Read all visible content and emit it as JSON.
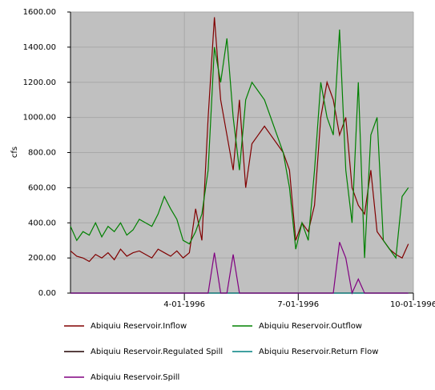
{
  "chart_data": {
    "type": "line",
    "y_label": "cfs",
    "x": [
      "1996-01-01",
      "1996-01-06",
      "1996-01-11",
      "1996-01-16",
      "1996-01-21",
      "1996-01-26",
      "1996-01-31",
      "1996-02-05",
      "1996-02-10",
      "1996-02-15",
      "1996-02-20",
      "1996-02-25",
      "1996-03-01",
      "1996-03-06",
      "1996-03-11",
      "1996-03-16",
      "1996-03-21",
      "1996-03-26",
      "1996-03-31",
      "1996-04-05",
      "1996-04-10",
      "1996-04-15",
      "1996-04-20",
      "1996-04-25",
      "1996-04-30",
      "1996-05-05",
      "1996-05-10",
      "1996-05-15",
      "1996-05-20",
      "1996-05-25",
      "1996-05-30",
      "1996-06-04",
      "1996-06-09",
      "1996-06-14",
      "1996-06-19",
      "1996-06-24",
      "1996-06-29",
      "1996-07-04",
      "1996-07-09",
      "1996-07-14",
      "1996-07-19",
      "1996-07-24",
      "1996-07-29",
      "1996-08-03",
      "1996-08-08",
      "1996-08-13",
      "1996-08-18",
      "1996-08-23",
      "1996-08-28",
      "1996-09-02",
      "1996-09-07",
      "1996-09-12",
      "1996-09-17",
      "1996-09-22",
      "1996-09-27"
    ],
    "xlim": [
      "1996-01-01",
      "1996-10-01"
    ],
    "xticks": [
      {
        "value": "1996-04-01",
        "label": "4-01-1996"
      },
      {
        "value": "1996-07-01",
        "label": "7-01-1996"
      },
      {
        "value": "1996-10-01",
        "label": "10-01-1996"
      }
    ],
    "ylim": [
      0,
      1600
    ],
    "yticks": [
      {
        "value": 0,
        "label": "0.00"
      },
      {
        "value": 200,
        "label": "200.00"
      },
      {
        "value": 400,
        "label": "400.00"
      },
      {
        "value": 600,
        "label": "600.00"
      },
      {
        "value": 800,
        "label": "800.00"
      },
      {
        "value": 1000,
        "label": "1000.00"
      },
      {
        "value": 1200,
        "label": "1200.00"
      },
      {
        "value": 1400,
        "label": "1400.00"
      },
      {
        "value": 1600,
        "label": "1600.00"
      }
    ],
    "grid": true,
    "background": "#c0c0c0",
    "series": [
      {
        "name": "Abiquiu Reservoir.Inflow",
        "color": "#800000",
        "values": [
          240,
          210,
          200,
          180,
          220,
          200,
          230,
          190,
          250,
          210,
          230,
          240,
          220,
          200,
          250,
          230,
          210,
          240,
          200,
          230,
          480,
          300,
          1000,
          1570,
          1100,
          900,
          700,
          1100,
          600,
          850,
          900,
          950,
          900,
          850,
          800,
          700,
          300,
          400,
          350,
          500,
          1000,
          1200,
          1100,
          900,
          1000,
          600,
          500,
          450,
          700,
          350,
          300,
          250,
          220,
          200,
          280
        ]
      },
      {
        "name": "Abiquiu Reservoir.Outflow",
        "color": "#008000",
        "values": [
          380,
          300,
          350,
          330,
          400,
          320,
          380,
          350,
          400,
          330,
          360,
          420,
          400,
          380,
          450,
          550,
          480,
          420,
          300,
          280,
          350,
          450,
          700,
          1400,
          1200,
          1450,
          1000,
          700,
          1100,
          1200,
          1150,
          1100,
          1000,
          900,
          800,
          600,
          250,
          400,
          300,
          700,
          1200,
          1000,
          900,
          1500,
          700,
          400,
          1200,
          200,
          900,
          1000,
          300,
          250,
          200,
          550,
          600
        ]
      },
      {
        "name": "Abiquiu Reservoir.Regulated Spill",
        "color": "#200000",
        "values": [
          0,
          0,
          0,
          0,
          0,
          0,
          0,
          0,
          0,
          0,
          0,
          0,
          0,
          0,
          0,
          0,
          0,
          0,
          0,
          0,
          0,
          0,
          0,
          0,
          0,
          0,
          0,
          0,
          0,
          0,
          0,
          0,
          0,
          0,
          0,
          0,
          0,
          0,
          0,
          0,
          0,
          0,
          0,
          0,
          0,
          0,
          0,
          0,
          0,
          0,
          0,
          0,
          0,
          0,
          0
        ]
      },
      {
        "name": "Abiquiu Reservoir.Return Flow",
        "color": "#008080",
        "values": [
          0,
          0,
          0,
          0,
          0,
          0,
          0,
          0,
          0,
          0,
          0,
          0,
          0,
          0,
          0,
          0,
          0,
          0,
          0,
          0,
          0,
          0,
          0,
          0,
          0,
          0,
          0,
          0,
          0,
          0,
          0,
          0,
          0,
          0,
          0,
          0,
          0,
          0,
          0,
          0,
          0,
          0,
          0,
          0,
          0,
          0,
          0,
          0,
          0,
          0,
          0,
          0,
          0,
          0,
          0
        ]
      },
      {
        "name": "Abiquiu Reservoir.Spill",
        "color": "#800080",
        "values": [
          0,
          0,
          0,
          0,
          0,
          0,
          0,
          0,
          0,
          0,
          0,
          0,
          0,
          0,
          0,
          0,
          0,
          0,
          0,
          0,
          0,
          0,
          0,
          230,
          0,
          0,
          220,
          0,
          0,
          0,
          0,
          0,
          0,
          0,
          0,
          0,
          0,
          0,
          0,
          0,
          0,
          0,
          0,
          290,
          200,
          0,
          80,
          0,
          0,
          0,
          0,
          0,
          0,
          0,
          0
        ]
      }
    ]
  }
}
